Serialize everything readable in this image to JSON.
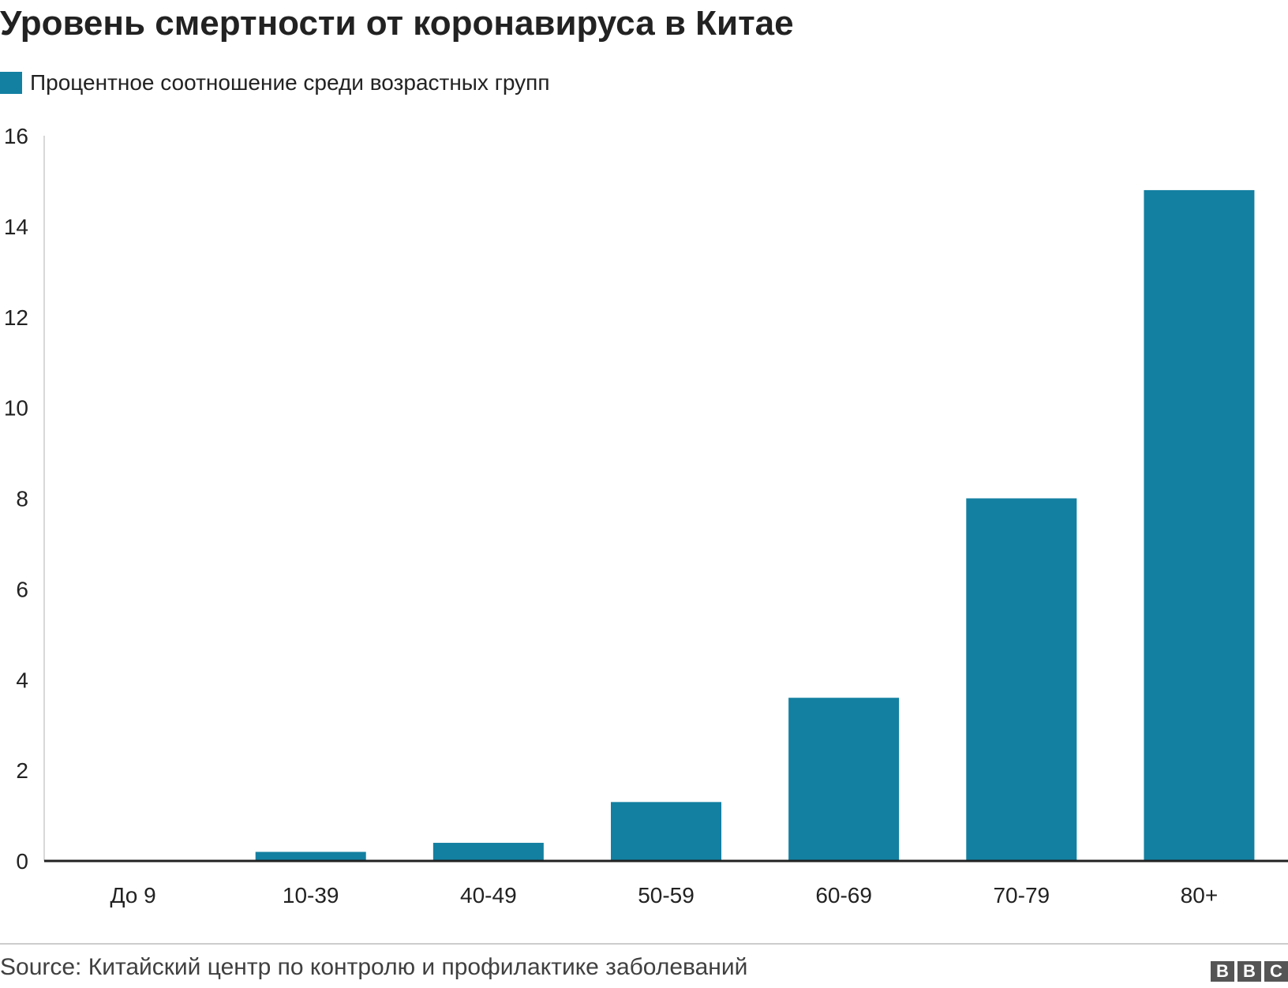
{
  "chart_data": {
    "type": "bar",
    "title": "Уровень смертности от коронавируса в Китае",
    "legend": [
      {
        "name": "Процентное соотношение среди возрастных групп",
        "color": "#1380a1"
      }
    ],
    "legend_position": "top-left",
    "categories": [
      "До 9",
      "10-39",
      "40-49",
      "50-59",
      "60-69",
      "70-79",
      "80+"
    ],
    "series": [
      {
        "name": "Процентное соотношение среди возрастных групп",
        "values": [
          0,
          0.2,
          0.4,
          1.3,
          3.6,
          8.0,
          14.8
        ]
      }
    ],
    "ylim": [
      0,
      16
    ],
    "yticks": [
      "0",
      "2",
      "4",
      "6",
      "8",
      "10",
      "12",
      "14",
      "16"
    ],
    "ytick_values": [
      0,
      2,
      4,
      6,
      8,
      10,
      12,
      14,
      16
    ],
    "grid": false,
    "bar_color": "#1380a1",
    "xlabel": "",
    "ylabel": ""
  },
  "footer": {
    "source": "Source: Китайский центр по контролю и профилактике заболеваний",
    "logo": [
      "B",
      "B",
      "C"
    ]
  }
}
